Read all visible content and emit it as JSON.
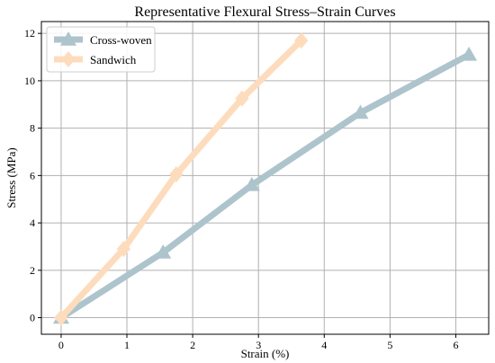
{
  "chart_data": {
    "type": "line",
    "title": "Representative Flexural Stress–Strain Curves",
    "xlabel": "Strain (%)",
    "ylabel": "Stress (MPa)",
    "xlim": [
      -0.3,
      6.5
    ],
    "ylim": [
      -0.7,
      12.5
    ],
    "xticks": [
      0,
      1,
      2,
      3,
      4,
      5,
      6
    ],
    "yticks": [
      0,
      2,
      4,
      6,
      8,
      10,
      12
    ],
    "grid": true,
    "legend_position": "top-left",
    "series": [
      {
        "name": "Cross-woven",
        "color": "#aec4cc",
        "marker": "triangle",
        "x": [
          0,
          1.55,
          2.9,
          4.55,
          6.2
        ],
        "y": [
          0,
          2.75,
          5.6,
          8.65,
          11.1
        ]
      },
      {
        "name": "Sandwich",
        "color": "#fddcbd",
        "marker": "diamond",
        "x": [
          0,
          0.95,
          1.75,
          2.75,
          3.65
        ],
        "y": [
          0,
          2.9,
          6.05,
          9.25,
          11.7
        ]
      }
    ]
  }
}
